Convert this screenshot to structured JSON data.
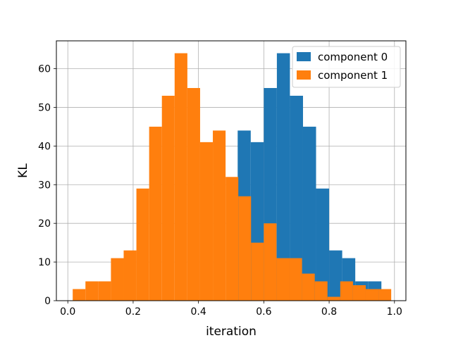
{
  "chart_data": {
    "type": "bar",
    "subtype": "histogram",
    "xlabel": "iteration",
    "ylabel": "KL",
    "xlim": [
      -0.035,
      1.035
    ],
    "ylim": [
      0,
      67.2
    ],
    "xticks": [
      0.0,
      0.2,
      0.4,
      0.6,
      0.8,
      1.0
    ],
    "xtick_labels": [
      "0.0",
      "0.2",
      "0.4",
      "0.6",
      "0.8",
      "1.0"
    ],
    "yticks": [
      0,
      10,
      20,
      30,
      40,
      50,
      60
    ],
    "ytick_labels": [
      "0",
      "10",
      "20",
      "30",
      "40",
      "50",
      "60"
    ],
    "grid": true,
    "legend_position": "top-right",
    "series": [
      {
        "name": "component 0",
        "color": "#1f77b4",
        "bins": [
          [
            0.52,
            0.56,
            44
          ],
          [
            0.56,
            0.6,
            41
          ],
          [
            0.6,
            0.64,
            55
          ],
          [
            0.64,
            0.68,
            64
          ],
          [
            0.68,
            0.72,
            53
          ],
          [
            0.72,
            0.76,
            45
          ],
          [
            0.76,
            0.8,
            29
          ],
          [
            0.8,
            0.84,
            13
          ],
          [
            0.84,
            0.88,
            11
          ],
          [
            0.88,
            0.92,
            5
          ],
          [
            0.92,
            0.96,
            5
          ]
        ]
      },
      {
        "name": "component 1",
        "color": "#ff7f0e",
        "bins": [
          [
            0.015,
            0.054,
            3
          ],
          [
            0.054,
            0.093,
            5
          ],
          [
            0.093,
            0.132,
            5
          ],
          [
            0.132,
            0.171,
            11
          ],
          [
            0.171,
            0.21,
            13
          ],
          [
            0.21,
            0.249,
            29
          ],
          [
            0.249,
            0.288,
            45
          ],
          [
            0.288,
            0.327,
            53
          ],
          [
            0.327,
            0.366,
            64
          ],
          [
            0.366,
            0.405,
            55
          ],
          [
            0.405,
            0.444,
            41
          ],
          [
            0.444,
            0.483,
            44
          ],
          [
            0.483,
            0.522,
            32
          ],
          [
            0.522,
            0.561,
            27
          ],
          [
            0.561,
            0.6,
            15
          ],
          [
            0.6,
            0.639,
            20
          ],
          [
            0.639,
            0.678,
            11
          ],
          [
            0.678,
            0.717,
            11
          ],
          [
            0.717,
            0.756,
            7
          ],
          [
            0.756,
            0.795,
            5
          ],
          [
            0.795,
            0.834,
            1
          ],
          [
            0.834,
            0.873,
            5
          ],
          [
            0.873,
            0.912,
            4
          ],
          [
            0.912,
            0.951,
            3
          ],
          [
            0.951,
            0.99,
            3
          ]
        ]
      }
    ]
  }
}
